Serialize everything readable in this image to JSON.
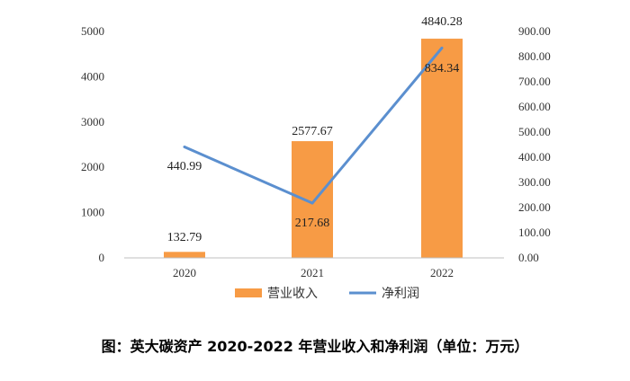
{
  "caption": "图：英大碳资产 2020-2022 年营业收入和净利润（单位：万元）",
  "colors": {
    "bar": "#F79B45",
    "line": "#5B8FCF",
    "axis": "#BFBFBF"
  },
  "chart_data": {
    "type": "bar",
    "categories": [
      "2020",
      "2021",
      "2022"
    ],
    "series": [
      {
        "name": "营业收入",
        "type": "bar",
        "axis": "left",
        "values": [
          132.79,
          2577.67,
          4840.28
        ],
        "labels": [
          "132.79",
          "2577.67",
          "4840.28"
        ]
      },
      {
        "name": "净利润",
        "type": "line",
        "axis": "right",
        "values": [
          440.99,
          217.68,
          834.34
        ],
        "labels": [
          "440.99",
          "217.68",
          "834.34"
        ]
      }
    ],
    "y_left": {
      "ylim": [
        0,
        5000
      ],
      "ticks": [
        0,
        1000,
        2000,
        3000,
        4000,
        5000
      ],
      "tick_labels": [
        "0",
        "1000",
        "2000",
        "3000",
        "4000",
        "5000"
      ]
    },
    "y_right": {
      "ylim": [
        0,
        900
      ],
      "ticks": [
        0,
        100,
        200,
        300,
        400,
        500,
        600,
        700,
        800,
        900
      ],
      "tick_labels": [
        "0.00",
        "100.00",
        "200.00",
        "300.00",
        "400.00",
        "500.00",
        "600.00",
        "700.00",
        "800.00",
        "900.00"
      ]
    },
    "legend": "bottom",
    "grid": false
  }
}
